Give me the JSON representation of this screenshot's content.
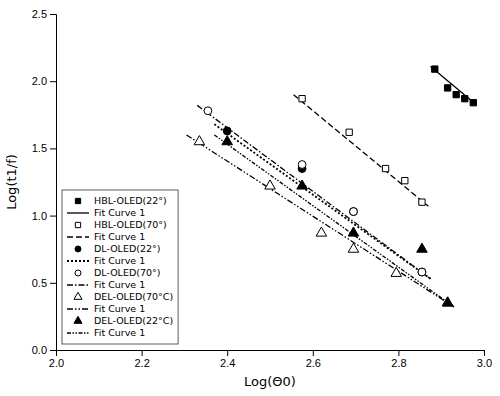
{
  "chart_data": {
    "type": "scatter",
    "title": "",
    "xlabel": "Log(Θ0)",
    "ylabel": "Log(t1/f)",
    "xlim": [
      2.0,
      3.0
    ],
    "ylim": [
      0.0,
      2.5
    ],
    "xticks": [
      {
        "value": 2.0,
        "label": "2.0"
      },
      2.2,
      2.4,
      2.6,
      2.8,
      {
        "value": 3.0,
        "label": "3.0"
      }
    ],
    "yticks": [
      {
        "value": 0.0,
        "label": "0.0"
      },
      0.5,
      {
        "value": 1.0,
        "label": "1.0"
      },
      1.5,
      {
        "value": 2.0,
        "label": "2.0"
      },
      2.5
    ],
    "grid": false,
    "legend": "lower left",
    "series": [
      {
        "name": "HBL-OLED(22°)",
        "type": "scatter",
        "marker": "square",
        "color": "black",
        "x": [
          2.885,
          2.915,
          2.935,
          2.955,
          2.975
        ],
        "values": [
          2.09,
          1.95,
          1.9,
          1.87,
          1.84
        ]
      },
      {
        "name": "Fit Curve 1",
        "type": "line",
        "line_style": "solid",
        "color": "black",
        "x": [
          2.875,
          2.98
        ],
        "values": [
          2.11,
          1.83
        ]
      },
      {
        "name": "HBL-OLED(70°)",
        "type": "scatter",
        "marker": "square-open",
        "color": "black",
        "x": [
          2.575,
          2.685,
          2.77,
          2.815,
          2.855
        ],
        "values": [
          1.87,
          1.62,
          1.35,
          1.26,
          1.1
        ]
      },
      {
        "name": "Fit Curve 1",
        "type": "line",
        "line_style": "dashed",
        "color": "black",
        "x": [
          2.555,
          2.87
        ],
        "values": [
          1.9,
          1.07
        ]
      },
      {
        "name": "DL-OLED(22°)",
        "type": "scatter",
        "marker": "circle",
        "color": "black",
        "x": [
          2.4,
          2.575,
          2.695,
          2.855
        ],
        "values": [
          1.63,
          1.35,
          1.03,
          0.58
        ]
      },
      {
        "name": "Fit Curve 1",
        "type": "line",
        "line_style": "dotted",
        "color": "black",
        "x": [
          2.37,
          2.875
        ],
        "values": [
          1.68,
          0.53
        ]
      },
      {
        "name": "DL-OLED(70°)",
        "type": "scatter",
        "marker": "circle-open",
        "color": "black",
        "x": [
          2.355,
          2.575,
          2.695,
          2.855
        ],
        "values": [
          1.78,
          1.38,
          1.03,
          0.58
        ]
      },
      {
        "name": "Fit Curve 1",
        "type": "line",
        "line_style": "dashdot",
        "color": "black",
        "x": [
          2.33,
          2.875
        ],
        "values": [
          1.82,
          0.53
        ]
      },
      {
        "name": "DEL-OLED(70°C)",
        "type": "scatter",
        "marker": "triangle-open",
        "color": "black",
        "x": [
          2.335,
          2.5,
          2.62,
          2.695,
          2.795,
          2.915
        ],
        "values": [
          1.55,
          1.22,
          0.87,
          0.75,
          0.57,
          0.35
        ]
      },
      {
        "name": "Fit Curve 1",
        "type": "line",
        "line_style": "dashdotdot",
        "color": "black",
        "x": [
          2.305,
          2.93
        ],
        "values": [
          1.6,
          0.32
        ]
      },
      {
        "name": "DEL-OLED(22°C)",
        "type": "scatter",
        "marker": "triangle",
        "color": "black",
        "x": [
          2.4,
          2.575,
          2.695,
          2.855,
          2.915
        ],
        "values": [
          1.55,
          1.22,
          0.87,
          0.75,
          0.35
        ]
      },
      {
        "name": "Fit Curve 1",
        "type": "line",
        "line_style": "densedashdotdot",
        "color": "black",
        "x": [
          2.37,
          2.93
        ],
        "values": [
          1.6,
          0.32
        ]
      }
    ]
  }
}
